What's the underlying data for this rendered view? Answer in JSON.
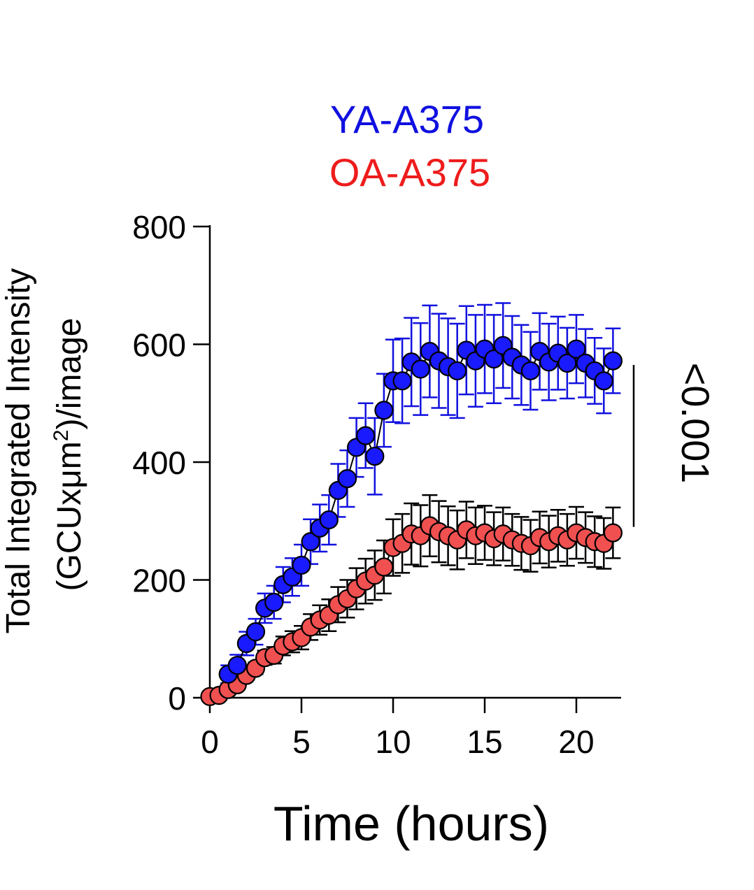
{
  "chart_data": {
    "type": "scatter",
    "legend": [
      {
        "label": "YA-A375",
        "color": "#1010e0"
      },
      {
        "label": "OA-A375",
        "color": "#ee1c1c"
      }
    ],
    "xlabel": "Time (hours)",
    "ylabel_line1": "Total Integrated Intensity",
    "ylabel_line2_pre": "(GCUxμm",
    "ylabel_sup": "2",
    "ylabel_line2_post": ")/image",
    "xlim": [
      0,
      22.5
    ],
    "ylim": [
      0,
      800
    ],
    "xticks": [
      0,
      5,
      10,
      15,
      20
    ],
    "yticks": [
      0,
      200,
      400,
      600,
      800
    ],
    "xtick_labels": [
      "0",
      "5",
      "10",
      "15",
      "20"
    ],
    "ytick_labels": [
      "0",
      "200",
      "400",
      "600",
      "800"
    ],
    "annotation": "<0.001",
    "annotation_span": [
      290,
      565
    ],
    "series": [
      {
        "name": "YA-A375",
        "marker_color": "#1a1aff",
        "error_color": "#1010e0",
        "x": [
          1,
          1.5,
          2,
          2.5,
          3,
          3.5,
          4,
          4.5,
          5,
          5.5,
          6,
          6.5,
          7,
          7.5,
          8,
          8.5,
          9,
          9.5,
          10,
          10.5,
          11,
          11.5,
          12,
          12.5,
          13,
          13.5,
          14,
          14.5,
          15,
          15.5,
          16,
          16.5,
          17,
          17.5,
          18,
          18.5,
          19,
          19.5,
          20,
          20.5,
          21,
          21.5,
          22
        ],
        "y": [
          40,
          55,
          92,
          112,
          152,
          162,
          192,
          205,
          225,
          265,
          288,
          302,
          352,
          372,
          425,
          445,
          410,
          488,
          538,
          538,
          570,
          558,
          588,
          572,
          562,
          555,
          590,
          572,
          592,
          575,
          598,
          578,
          565,
          555,
          588,
          570,
          585,
          568,
          592,
          568,
          555,
          538,
          572
        ],
        "err": [
          15,
          18,
          20,
          22,
          25,
          28,
          30,
          32,
          35,
          38,
          40,
          42,
          45,
          48,
          50,
          55,
          65,
          62,
          70,
          72,
          75,
          78,
          78,
          80,
          82,
          80,
          75,
          78,
          75,
          75,
          72,
          70,
          68,
          66,
          65,
          65,
          62,
          60,
          58,
          58,
          56,
          55,
          55
        ]
      },
      {
        "name": "OA-A375",
        "marker_color": "#f05050",
        "error_color": "#000000",
        "x": [
          0,
          0.5,
          1,
          1.5,
          2,
          2.5,
          3,
          3.5,
          4,
          4.5,
          5,
          5.5,
          6,
          6.5,
          7,
          7.5,
          8,
          8.5,
          9,
          9.5,
          10,
          10.5,
          11,
          11.5,
          12,
          12.5,
          13,
          13.5,
          14,
          14.5,
          15,
          15.5,
          16,
          16.5,
          17,
          17.5,
          18,
          18.5,
          19,
          19.5,
          20,
          20.5,
          21,
          21.5,
          22
        ],
        "y": [
          2,
          4,
          14,
          22,
          38,
          50,
          68,
          72,
          88,
          95,
          102,
          120,
          132,
          140,
          158,
          168,
          185,
          198,
          208,
          222,
          255,
          262,
          278,
          275,
          292,
          282,
          275,
          268,
          285,
          275,
          280,
          270,
          278,
          268,
          262,
          258,
          272,
          265,
          275,
          268,
          280,
          272,
          265,
          262,
          280
        ]
      }
    ]
  },
  "oa_err": [
    2,
    3,
    5,
    6,
    8,
    10,
    12,
    14,
    16,
    18,
    20,
    22,
    25,
    27,
    30,
    32,
    35,
    38,
    42,
    45,
    48,
    50,
    52,
    52,
    52,
    52,
    50,
    50,
    48,
    48,
    46,
    45,
    45,
    44,
    45,
    44,
    44,
    44,
    44,
    44,
    44,
    43,
    43,
    43,
    43
  ]
}
